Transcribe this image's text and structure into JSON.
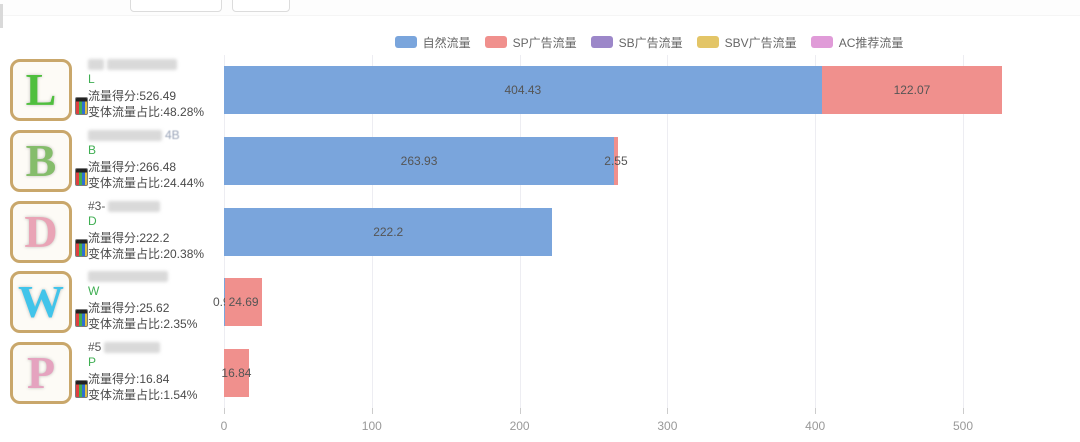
{
  "toolbar": {
    "buttons": [
      {
        "label": ""
      },
      {
        "label": ""
      }
    ]
  },
  "legend": [
    {
      "label": "自然流量",
      "color": "#7aa5dc"
    },
    {
      "label": "SP广告流量",
      "color": "#f0908d"
    },
    {
      "label": "SB广告流量",
      "color": "#9c87c9"
    },
    {
      "label": "SBV广告流量",
      "color": "#e3c567"
    },
    {
      "label": "AC推荐流量",
      "color": "#e09bd8"
    }
  ],
  "products": [
    {
      "letter": "L",
      "id_prefix": "",
      "id_suffix": "",
      "blur_widths": [
        16,
        70
      ],
      "score_label": "流量得分:526.49",
      "ratio_label": "变体流量占比:48.28%",
      "thumb_color": "#4fbf3e"
    },
    {
      "letter": "B",
      "id_prefix": "",
      "id_suffix": "4B",
      "blur_widths": [
        74
      ],
      "score_label": "流量得分:266.48",
      "ratio_label": "变体流量占比:24.44%",
      "thumb_color": "#85bd6b"
    },
    {
      "letter": "D",
      "id_prefix": "#3-",
      "id_suffix": "",
      "blur_widths": [
        52
      ],
      "score_label": "流量得分:222.2",
      "ratio_label": "变体流量占比:20.38%",
      "thumb_color": "#e9a4b6"
    },
    {
      "letter": "W",
      "id_prefix": "",
      "id_suffix": "",
      "blur_widths": [
        80
      ],
      "score_label": "流量得分:25.62",
      "ratio_label": "变体流量占比:2.35%",
      "thumb_color": "#41c4ea"
    },
    {
      "letter": "P",
      "id_prefix": "#5",
      "id_suffix": "",
      "blur_widths": [
        56
      ],
      "score_label": "流量得分:16.84",
      "ratio_label": "变体流量占比:1.54%",
      "thumb_color": "#e5a3bf"
    }
  ],
  "chart_data": {
    "type": "bar",
    "orientation": "horizontal",
    "stacked": true,
    "categories": [
      "L",
      "B",
      "D",
      "W",
      "P"
    ],
    "series": [
      {
        "name": "自然流量",
        "color": "#7aa5dc",
        "values": [
          404.43,
          263.93,
          222.2,
          0.93,
          0
        ]
      },
      {
        "name": "SP广告流量",
        "color": "#f0908d",
        "values": [
          122.07,
          2.55,
          0,
          24.69,
          16.84
        ]
      },
      {
        "name": "SB广告流量",
        "color": "#9c87c9",
        "values": [
          0,
          0,
          0,
          0,
          0
        ]
      },
      {
        "name": "SBV广告流量",
        "color": "#e3c567",
        "values": [
          0,
          0,
          0,
          0,
          0
        ]
      },
      {
        "name": "AC推荐流量",
        "color": "#e09bd8",
        "values": [
          0,
          0,
          0,
          0,
          0
        ]
      }
    ],
    "title": "",
    "xlabel": "",
    "ylabel": "",
    "x_ticks": [
      0,
      100,
      200,
      300,
      400,
      500
    ],
    "xlim": [
      0,
      575
    ],
    "grid": true,
    "legend_position": "top"
  }
}
